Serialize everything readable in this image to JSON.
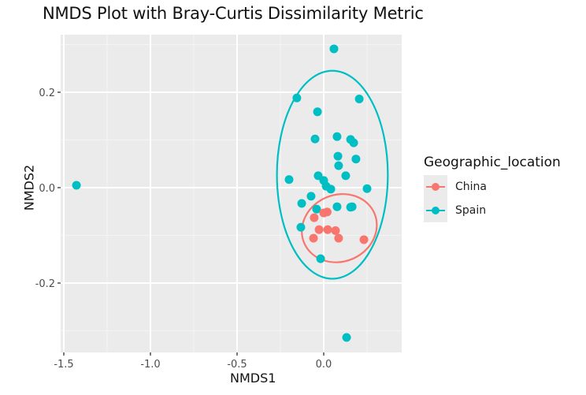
{
  "chart_data": {
    "type": "scatter",
    "title": "NMDS Plot with Bray-Curtis Dissimilarity Metric",
    "xlabel": "NMDS1",
    "ylabel": "NMDS2",
    "xlim": [
      -1.52,
      0.45
    ],
    "ylim": [
      -0.345,
      0.32
    ],
    "x_ticks": [
      -1.5,
      -1.0,
      -0.5,
      0.0
    ],
    "x_tick_labels": [
      "-1.5",
      "-1.0",
      "-0.5",
      "0.0"
    ],
    "y_ticks": [
      -0.2,
      0.0,
      0.2
    ],
    "y_tick_labels": [
      "-0.2",
      "0.0",
      "0.2"
    ],
    "grid": true,
    "legend": {
      "title": "Geographic_location",
      "position": "right",
      "entries": [
        "China",
        "Spain"
      ]
    },
    "series": [
      {
        "name": "China",
        "color": "#F8766D",
        "points": [
          [
            0.02,
            -0.051
          ],
          [
            0.0,
            -0.053
          ],
          [
            -0.055,
            -0.063
          ],
          [
            -0.027,
            -0.088
          ],
          [
            0.023,
            -0.088
          ],
          [
            0.068,
            -0.09
          ],
          [
            -0.059,
            -0.106
          ],
          [
            0.086,
            -0.106
          ],
          [
            0.232,
            -0.109
          ]
        ],
        "ellipse": {
          "cx": 0.09,
          "cy": -0.085,
          "rx": 0.22,
          "ry": 0.07,
          "angle_deg": -22
        }
      },
      {
        "name": "Spain",
        "color": "#00BFC4",
        "points": [
          [
            0.059,
            0.291
          ],
          [
            -0.155,
            0.188
          ],
          [
            0.205,
            0.186
          ],
          [
            -0.036,
            0.159
          ],
          [
            -0.05,
            0.102
          ],
          [
            0.077,
            0.107
          ],
          [
            0.155,
            0.101
          ],
          [
            0.173,
            0.094
          ],
          [
            0.082,
            0.066
          ],
          [
            0.186,
            0.06
          ],
          [
            0.086,
            0.046
          ],
          [
            0.127,
            0.025
          ],
          [
            -0.2,
            0.017
          ],
          [
            -0.032,
            0.025
          ],
          [
            0.0,
            0.015
          ],
          [
            0.014,
            0.003
          ],
          [
            0.041,
            -0.003
          ],
          [
            0.25,
            -0.002
          ],
          [
            -0.073,
            -0.018
          ],
          [
            0.164,
            -0.04
          ],
          [
            -0.127,
            -0.033
          ],
          [
            -0.041,
            -0.045
          ],
          [
            0.155,
            -0.041
          ],
          [
            0.077,
            -0.04
          ],
          [
            -0.132,
            -0.083
          ],
          [
            -0.018,
            -0.149
          ],
          [
            0.132,
            -0.314
          ],
          [
            -1.427,
            0.005
          ]
        ],
        "ellipse": {
          "cx": 0.05,
          "cy": 0.027,
          "rx": 0.32,
          "ry": 0.218,
          "angle_deg": 0
        }
      }
    ]
  },
  "legend": {
    "title": "Geographic_location",
    "items": [
      {
        "label": "China",
        "color": "#F8766D"
      },
      {
        "label": "Spain",
        "color": "#00BFC4"
      }
    ]
  },
  "axes": {
    "xlabel": "NMDS1",
    "ylabel": "NMDS2"
  },
  "colors": {
    "panel": "#EBEBEB",
    "grid_major": "#FFFFFF",
    "grid_minor": "#F4F4F4",
    "tick": "#4D4D4D"
  }
}
